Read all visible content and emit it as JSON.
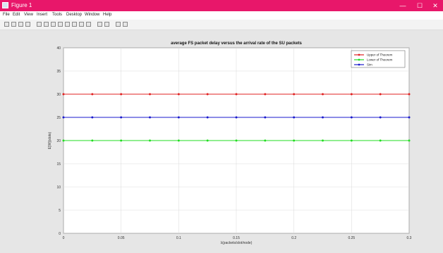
{
  "window": {
    "title": "Figure 1",
    "minimize_glyph": "—",
    "maximize_glyph": "☐",
    "close_glyph": "✕"
  },
  "menu": {
    "items": [
      "File",
      "Edit",
      "View",
      "Insert",
      "Tools",
      "Desktop",
      "Window",
      "Help"
    ]
  },
  "toolbar": {
    "icons": [
      "new-figure-icon",
      "open-file-icon",
      "save-icon",
      "print-icon",
      "pointer-icon",
      "zoom-in-icon",
      "zoom-out-icon",
      "pan-icon",
      "rotate-icon",
      "data-cursor-icon",
      "brush-icon",
      "link-icon",
      "insert-colorbar-icon",
      "insert-legend-icon",
      "hide-plot-tools-icon",
      "show-plot-tools-icon"
    ]
  },
  "colors": {
    "series_red": "#e02020",
    "series_green": "#22dd22",
    "series_blue": "#1a1acc",
    "titlebar": "#e8176a"
  },
  "chart_data": {
    "type": "line",
    "title": "average FS packet delay versus the arrival rate of the SU packets",
    "xlabel": "λ(packets/slot/node)",
    "ylabel": "E[W](slots)",
    "xlim": [
      0,
      0.4
    ],
    "ylim": [
      0,
      40
    ],
    "xticks": [
      "0",
      "0.05",
      "0.1",
      "0.15",
      "0.2",
      "0.25",
      "0.3"
    ],
    "yticks": [
      "0",
      "5",
      "10",
      "15",
      "20",
      "25",
      "30",
      "35",
      "40"
    ],
    "grid": true,
    "legend_position": "top-right",
    "x": [
      0,
      0.025,
      0.05,
      0.075,
      0.1,
      0.125,
      0.15,
      0.175,
      0.2,
      0.225,
      0.25,
      0.275,
      0.3
    ],
    "series": [
      {
        "name": "Upper of Theorem",
        "color": "#e02020",
        "values": [
          30,
          30,
          30,
          30,
          30,
          30,
          30,
          30,
          30,
          30,
          30,
          30,
          30
        ]
      },
      {
        "name": "Lower of Theorem",
        "color": "#22dd22",
        "values": [
          20,
          20,
          20,
          20,
          20,
          20,
          20,
          20,
          20,
          20,
          20,
          20,
          20
        ]
      },
      {
        "name": "Sim",
        "color": "#1a1acc",
        "values": [
          25,
          25,
          25,
          25,
          25,
          25,
          25,
          25,
          25,
          25,
          25,
          25,
          25
        ]
      }
    ]
  }
}
